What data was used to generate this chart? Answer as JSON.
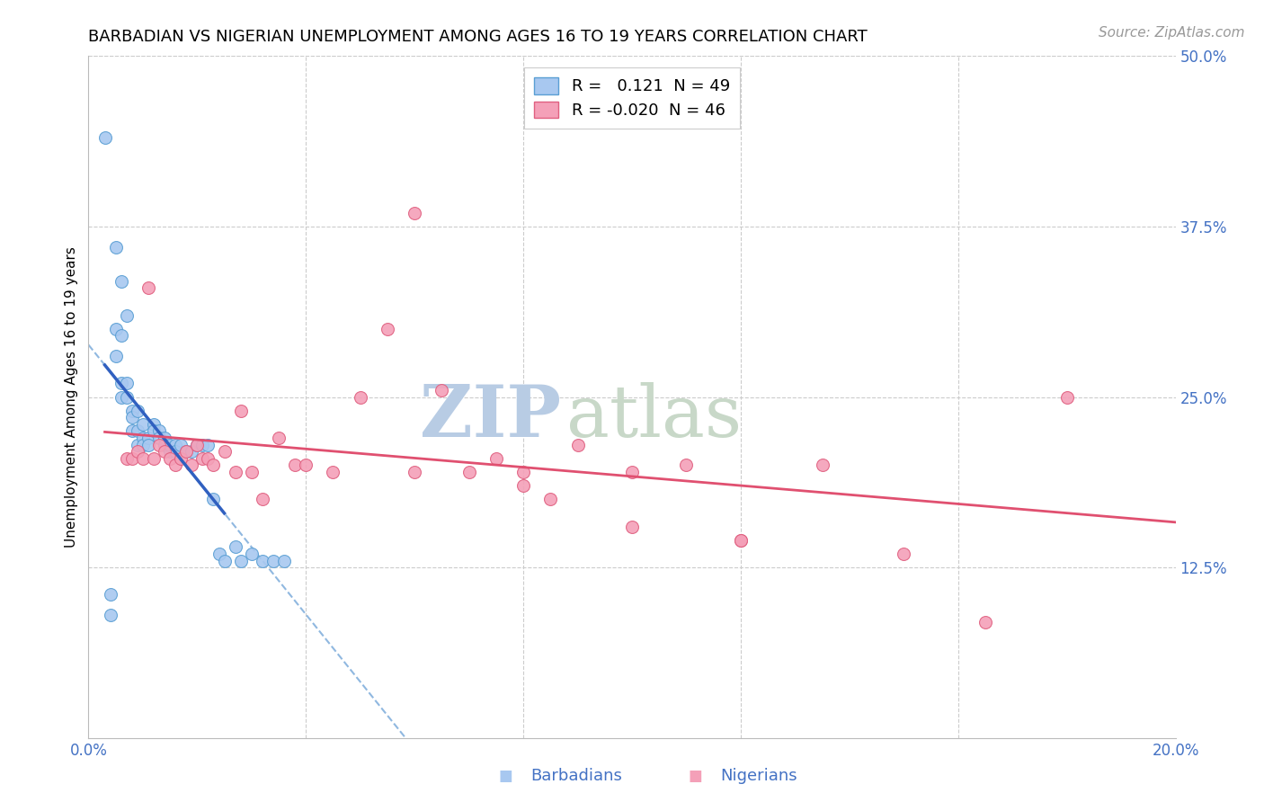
{
  "title": "BARBADIAN VS NIGERIAN UNEMPLOYMENT AMONG AGES 16 TO 19 YEARS CORRELATION CHART",
  "source": "Source: ZipAtlas.com",
  "ylabel": "Unemployment Among Ages 16 to 19 years",
  "xlim": [
    0.0,
    0.2
  ],
  "ylim": [
    0.0,
    0.5
  ],
  "xticks": [
    0.0,
    0.04,
    0.08,
    0.12,
    0.16,
    0.2
  ],
  "yticks_right": [
    0.0,
    0.125,
    0.25,
    0.375,
    0.5
  ],
  "legend_entries": [
    {
      "label": "R =   0.121  N = 49",
      "color": "#a8c8f0"
    },
    {
      "label": "R = -0.020  N = 46",
      "color": "#f4a0b8"
    }
  ],
  "barbadian_x": [
    0.003,
    0.004,
    0.004,
    0.005,
    0.005,
    0.005,
    0.006,
    0.006,
    0.006,
    0.006,
    0.007,
    0.007,
    0.007,
    0.008,
    0.008,
    0.008,
    0.009,
    0.009,
    0.009,
    0.01,
    0.01,
    0.01,
    0.011,
    0.011,
    0.012,
    0.012,
    0.013,
    0.013,
    0.014,
    0.014,
    0.015,
    0.015,
    0.016,
    0.016,
    0.017,
    0.018,
    0.019,
    0.02,
    0.021,
    0.022,
    0.023,
    0.024,
    0.025,
    0.027,
    0.028,
    0.03,
    0.032,
    0.034,
    0.036
  ],
  "barbadian_y": [
    0.44,
    0.105,
    0.09,
    0.36,
    0.3,
    0.28,
    0.335,
    0.295,
    0.26,
    0.25,
    0.31,
    0.26,
    0.25,
    0.24,
    0.235,
    0.225,
    0.24,
    0.225,
    0.215,
    0.23,
    0.22,
    0.215,
    0.22,
    0.215,
    0.23,
    0.225,
    0.225,
    0.22,
    0.22,
    0.215,
    0.21,
    0.215,
    0.215,
    0.21,
    0.215,
    0.21,
    0.21,
    0.215,
    0.215,
    0.215,
    0.175,
    0.135,
    0.13,
    0.14,
    0.13,
    0.135,
    0.13,
    0.13,
    0.13
  ],
  "nigerian_x": [
    0.007,
    0.008,
    0.009,
    0.01,
    0.011,
    0.012,
    0.013,
    0.014,
    0.015,
    0.016,
    0.017,
    0.018,
    0.019,
    0.02,
    0.021,
    0.022,
    0.023,
    0.025,
    0.027,
    0.028,
    0.03,
    0.032,
    0.035,
    0.038,
    0.04,
    0.045,
    0.05,
    0.055,
    0.06,
    0.065,
    0.07,
    0.075,
    0.08,
    0.085,
    0.09,
    0.1,
    0.11,
    0.12,
    0.135,
    0.15,
    0.165,
    0.18,
    0.06,
    0.08,
    0.1,
    0.12
  ],
  "nigerian_y": [
    0.205,
    0.205,
    0.21,
    0.205,
    0.33,
    0.205,
    0.215,
    0.21,
    0.205,
    0.2,
    0.205,
    0.21,
    0.2,
    0.215,
    0.205,
    0.205,
    0.2,
    0.21,
    0.195,
    0.24,
    0.195,
    0.175,
    0.22,
    0.2,
    0.2,
    0.195,
    0.25,
    0.3,
    0.385,
    0.255,
    0.195,
    0.205,
    0.195,
    0.175,
    0.215,
    0.195,
    0.2,
    0.145,
    0.2,
    0.135,
    0.085,
    0.25,
    0.195,
    0.185,
    0.155,
    0.145
  ],
  "barbadian_color": "#a8c8f0",
  "nigerian_color": "#f4a0b8",
  "barbadian_edge": "#5a9fd4",
  "nigerian_edge": "#e06080",
  "regression_blue_color": "#3060c0",
  "regression_pink_color": "#e05070",
  "dashed_blue_color": "#90b8e0",
  "watermark_zip": "ZIP",
  "watermark_atlas": "atlas",
  "watermark_color_zip": "#b8cce4",
  "watermark_color_atlas": "#c8d8c8",
  "title_fontsize": 13,
  "axis_label_fontsize": 11,
  "tick_fontsize": 12,
  "legend_fontsize": 13,
  "source_fontsize": 11,
  "marker_size": 100
}
